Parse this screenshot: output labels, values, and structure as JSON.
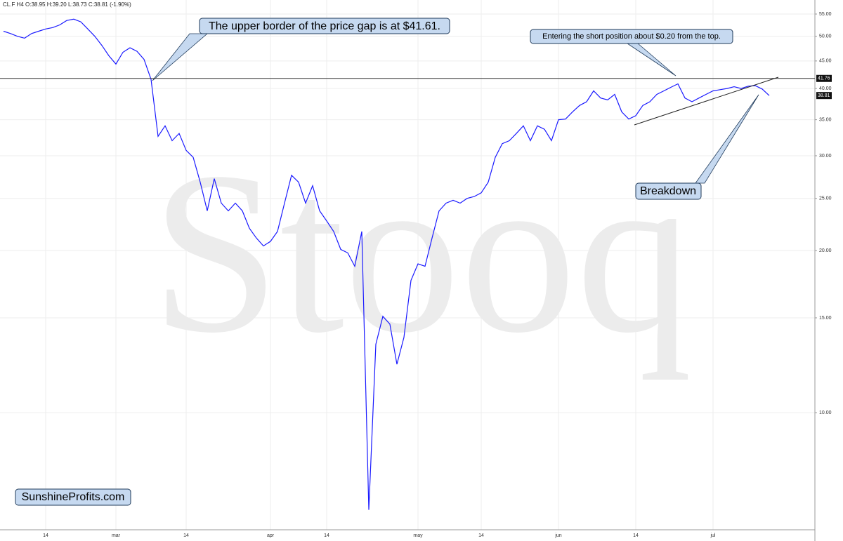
{
  "chart_data": {
    "type": "line",
    "header": "CL.F  H4  O:38.95  H:39.20  L:38.73  C:38.81  (-1.90%)",
    "watermark": "Stooq",
    "log_scale": true,
    "grid": true,
    "categories": [
      null,
      null,
      null,
      null,
      null,
      null,
      "14",
      null,
      null,
      null,
      null,
      null,
      null,
      null,
      null,
      null,
      "mar",
      null,
      null,
      null,
      null,
      null,
      null,
      null,
      null,
      null,
      "14",
      null,
      null,
      null,
      null,
      null,
      null,
      null,
      null,
      null,
      null,
      null,
      "apr",
      null,
      null,
      null,
      null,
      null,
      null,
      null,
      "14",
      null,
      null,
      null,
      null,
      null,
      null,
      null,
      null,
      null,
      null,
      null,
      null,
      "may",
      null,
      null,
      null,
      null,
      null,
      null,
      null,
      null,
      "14",
      null,
      null,
      null,
      null,
      null,
      null,
      null,
      null,
      null,
      null,
      "jun",
      null,
      null,
      null,
      null,
      null,
      null,
      null,
      null,
      null,
      null,
      "14",
      null,
      null,
      null,
      null,
      null,
      null,
      null,
      null,
      null,
      null,
      "jul",
      null,
      null,
      null,
      null,
      null,
      null,
      null,
      null,
      null,
      null,
      null,
      null,
      null,
      null
    ],
    "series": [
      {
        "color": "#1a1aff",
        "values": [
          51.1,
          50.6,
          50.0,
          49.6,
          50.6,
          51.1,
          51.6,
          51.9,
          52.5,
          53.5,
          53.8,
          53.2,
          51.6,
          50.0,
          48.1,
          46.0,
          44.4,
          46.7,
          47.6,
          46.9,
          45.3,
          41.6,
          32.6,
          34.1,
          32.0,
          33.0,
          30.7,
          29.8,
          26.8,
          23.7,
          27.2,
          24.5,
          23.7,
          24.5,
          23.7,
          22.0,
          21.1,
          20.4,
          20.8,
          21.7,
          24.5,
          27.6,
          26.8,
          24.5,
          26.4,
          23.7,
          22.7,
          21.7,
          20.1,
          19.8,
          18.7,
          21.7,
          6.6,
          13.4,
          15.1,
          14.6,
          12.3,
          13.8,
          17.6,
          18.9,
          18.7,
          21.1,
          23.7,
          24.5,
          24.8,
          24.5,
          25.0,
          25.2,
          25.6,
          26.8,
          29.8,
          31.6,
          32.0,
          33.0,
          34.1,
          32.0,
          34.1,
          33.6,
          32.0,
          35.0,
          35.1,
          36.2,
          37.2,
          37.8,
          39.6,
          38.4,
          38.1,
          39.0,
          36.2,
          35.1,
          35.6,
          37.2,
          37.8,
          39.0,
          39.6,
          40.2,
          40.8,
          38.4,
          37.8,
          38.4,
          39.0,
          39.6,
          39.8,
          40.0,
          40.3,
          40.0,
          40.4,
          40.5,
          39.9,
          38.81,
          null,
          null,
          null,
          null,
          null,
          null
        ]
      }
    ],
    "ylim": [
      6.06,
      58.4
    ],
    "yticks": [
      {
        "value": 10,
        "label": "10.00"
      },
      {
        "value": 15,
        "label": "15.00"
      },
      {
        "value": 20,
        "label": "20.00"
      },
      {
        "value": 25,
        "label": "25.00"
      },
      {
        "value": 30,
        "label": "30.00"
      },
      {
        "value": 35,
        "label": "35.00"
      },
      {
        "value": 40,
        "label": "40.00"
      },
      {
        "value": 45,
        "label": "45.00"
      },
      {
        "value": 50,
        "label": "50.00"
      },
      {
        "value": 55,
        "label": "55.00"
      }
    ],
    "hline": 41.76,
    "last_price": 38.81,
    "annotations": [
      "The upper border of the price gap is at $41.61.",
      "Entering the short position about $0.20 from the top.",
      "Breakdown"
    ],
    "brand": "SunshineProfits.com"
  }
}
